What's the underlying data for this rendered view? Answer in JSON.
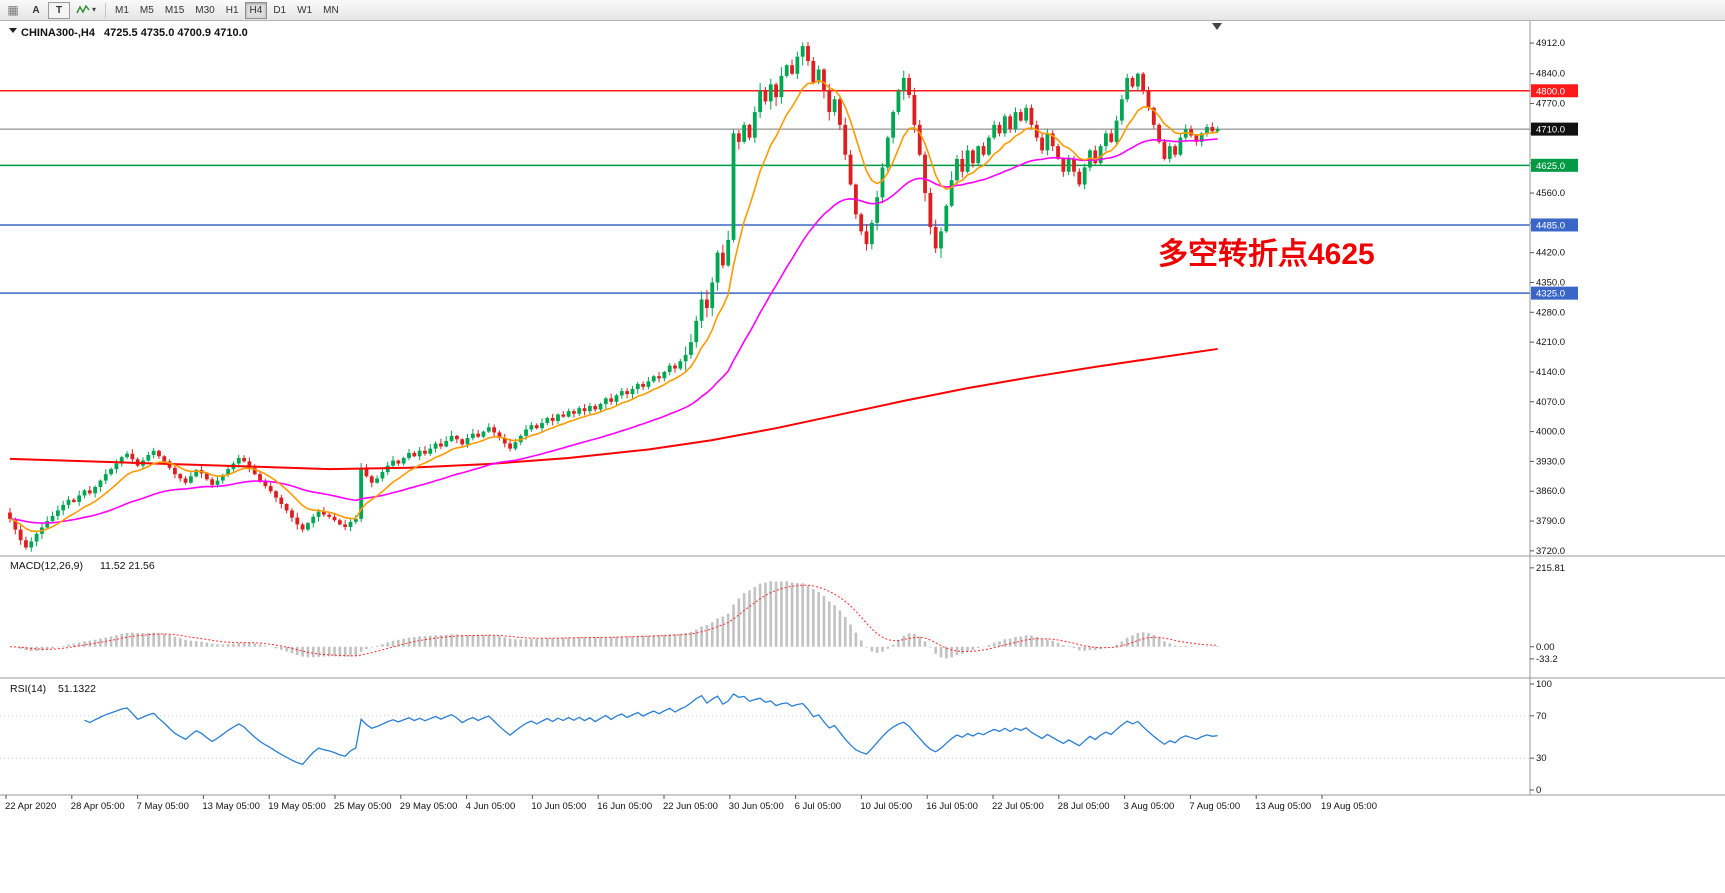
{
  "toolbar": {
    "grid_glyph": "▦",
    "tool_a_label": "A",
    "tool_t_label": "T",
    "dropdown_caret": "▾",
    "timeframes": [
      "M1",
      "M5",
      "M15",
      "M30",
      "H1",
      "H4",
      "D1",
      "W1",
      "MN"
    ],
    "active_timeframe": "H4"
  },
  "chart": {
    "symbol_period": "CHINA300-,H4",
    "ohlc": "4725.5 4735.0 4700.9 4710.0",
    "annotation": "多空转折点4625",
    "annotation_color": "#ee0000"
  },
  "chart_data": {
    "type": "candlestick",
    "symbol": "CHINA300-",
    "timeframe": "H4",
    "title": "CHINA300-,H4 4725.5 4735.0 4700.9 4710.0",
    "price_axis": {
      "min": 3715,
      "max": 4945,
      "ticks": [
        "4912.0",
        "4840.0",
        "4770.0",
        "4700.0",
        "4630.0",
        "4560.0",
        "4490.0",
        "4420.0",
        "4350.0",
        "4280.0",
        "4210.0",
        "4140.0",
        "4070.0",
        "4000.0",
        "3930.0",
        "3860.0",
        "3790.0",
        "3720.0"
      ]
    },
    "levels": [
      {
        "price": 4800.0,
        "label": "4800.0",
        "color": "#ff1a1a",
        "badge": "#ff1a1a",
        "type": "resistance"
      },
      {
        "price": 4710.0,
        "label": "4710.0",
        "color": "#777777",
        "badge": "#111111",
        "type": "current-price"
      },
      {
        "price": 4625.0,
        "label": "4625.0",
        "color": "#009a44",
        "badge": "#009a44",
        "type": "pivot"
      },
      {
        "price": 4485.0,
        "label": "4485.0",
        "color": "#3a66c8",
        "badge": "#3a66c8",
        "type": "support"
      },
      {
        "price": 4325.0,
        "label": "4325.0",
        "color": "#3a66c8",
        "badge": "#3a66c8",
        "type": "support"
      }
    ],
    "x_labels": [
      "22 Apr 2020",
      "28 Apr 05:00",
      "7 May 05:00",
      "13 May 05:00",
      "19 May 05:00",
      "25 May 05:00",
      "29 May 05:00",
      "4 Jun 05:00",
      "10 Jun 05:00",
      "16 Jun 05:00",
      "22 Jun 05:00",
      "30 Jun 05:00",
      "6 Jul 05:00",
      "10 Jul 05:00",
      "16 Jul 05:00",
      "22 Jul 05:00",
      "28 Jul 05:00",
      "3 Aug 05:00",
      "7 Aug 05:00",
      "13 Aug 05:00",
      "19 Aug 05:00"
    ],
    "first_open": 3810,
    "up_color": "#00a651",
    "down_color": "#de1f1f",
    "closes": [
      3795,
      3770,
      3745,
      3728,
      3742,
      3760,
      3775,
      3790,
      3802,
      3815,
      3828,
      3840,
      3835,
      3850,
      3862,
      3855,
      3870,
      3885,
      3900,
      3912,
      3925,
      3940,
      3948,
      3935,
      3920,
      3932,
      3945,
      3955,
      3942,
      3930,
      3915,
      3900,
      3890,
      3880,
      3895,
      3910,
      3902,
      3888,
      3875,
      3885,
      3898,
      3912,
      3925,
      3938,
      3930,
      3915,
      3900,
      3885,
      3872,
      3860,
      3845,
      3830,
      3815,
      3798,
      3782,
      3770,
      3785,
      3800,
      3812,
      3805,
      3800,
      3792,
      3782,
      3776,
      3788,
      3795,
      3915,
      3895,
      3880,
      3890,
      3905,
      3920,
      3932,
      3925,
      3938,
      3950,
      3942,
      3955,
      3948,
      3960,
      3972,
      3965,
      3978,
      3990,
      3982,
      3970,
      3985,
      3995,
      3988,
      4000,
      4010,
      3998,
      3985,
      3972,
      3960,
      3975,
      3990,
      4005,
      4015,
      4008,
      4020,
      4032,
      4025,
      4040,
      4035,
      4048,
      4042,
      4055,
      4048,
      4060,
      4052,
      4065,
      4078,
      4070,
      4085,
      4095,
      4088,
      4100,
      4112,
      4105,
      4118,
      4130,
      4125,
      4140,
      4155,
      4148,
      4165,
      4180,
      4210,
      4260,
      4310,
      4290,
      4350,
      4420,
      4390,
      4450,
      4700,
      4680,
      4720,
      4690,
      4750,
      4800,
      4775,
      4815,
      4785,
      4835,
      4860,
      4840,
      4880,
      4905,
      4870,
      4820,
      4850,
      4800,
      4750,
      4780,
      4720,
      4650,
      4580,
      4510,
      4470,
      4440,
      4490,
      4550,
      4620,
      4690,
      4750,
      4800,
      4830,
      4790,
      4720,
      4650,
      4560,
      4480,
      4430,
      4470,
      4530,
      4590,
      4640,
      4610,
      4660,
      4630,
      4670,
      4650,
      4690,
      4720,
      4700,
      4740,
      4710,
      4750,
      4730,
      4760,
      4720,
      4690,
      4660,
      4700,
      4670,
      4640,
      4610,
      4640,
      4610,
      4580,
      4620,
      4660,
      4630,
      4670,
      4700,
      4680,
      4730,
      4780,
      4830,
      4810,
      4840,
      4800,
      4760,
      4720,
      4680,
      4640,
      4670,
      4650,
      4690,
      4710,
      4695,
      4680,
      4700,
      4715,
      4705,
      4710
    ],
    "ma": {
      "fast": {
        "period": 10,
        "color": "#ff9a00"
      },
      "mid": {
        "period": 45,
        "color": "#ff00ff"
      },
      "slow": {
        "color": "#ff0000",
        "points": [
          [
            0,
            3936
          ],
          [
            15,
            3930
          ],
          [
            30,
            3924
          ],
          [
            45,
            3918
          ],
          [
            60,
            3912
          ],
          [
            75,
            3915
          ],
          [
            90,
            3924
          ],
          [
            105,
            3938
          ],
          [
            120,
            3958
          ],
          [
            132,
            3980
          ],
          [
            144,
            4008
          ],
          [
            156,
            4040
          ],
          [
            168,
            4072
          ],
          [
            180,
            4102
          ],
          [
            192,
            4128
          ],
          [
            204,
            4152
          ],
          [
            216,
            4174
          ],
          [
            227,
            4194
          ]
        ]
      }
    },
    "macd": {
      "name": "MACD(12,26,9)",
      "values_text": "11.52 21.56",
      "fast": 12,
      "slow": 26,
      "signal": 9,
      "hist_color": "#c2c2c2",
      "signal_color": "#ff2a2a",
      "axis": [
        {
          "label": "215.81",
          "value": 215.81
        },
        {
          "label": "0.00",
          "value": 0
        },
        {
          "label": "-33.2",
          "value": -33.2
        }
      ]
    },
    "rsi": {
      "name": "RSI(14)",
      "value_text": "51.1322",
      "period": 14,
      "color": "#2a7fd4",
      "levels": [
        70,
        30
      ],
      "axis": [
        {
          "label": "100",
          "value": 100
        },
        {
          "label": "70",
          "value": 70
        },
        {
          "label": "30",
          "value": 30
        },
        {
          "label": "0",
          "value": 0
        }
      ]
    }
  }
}
